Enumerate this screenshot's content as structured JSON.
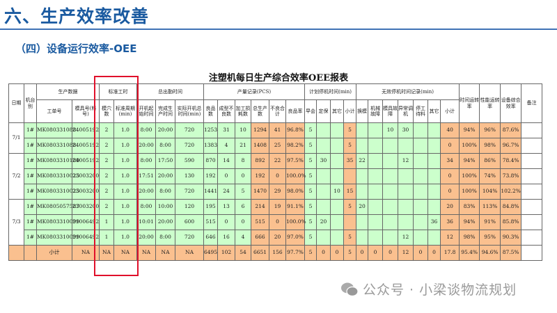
{
  "header": {
    "title": "六、生产效率改善",
    "subtitle": "（四）设备运行效率-OEE"
  },
  "report": {
    "title": "注塑机每日生产综合效率OEE报表",
    "groups": {
      "date": "日期",
      "machine": "机台别",
      "production": "生产数据",
      "std_time": "标准工时",
      "attendance": "总出勤时间",
      "output": "产量记录(PCS)",
      "planned": "计划停机时间(min)",
      "invalid": "无效停机时间记录(min)",
      "time_rate": "时间运转率",
      "perf_rate": "性能运转率",
      "oee": "设备综合效率",
      "remark": "备注"
    },
    "columns": [
      "工单号",
      "模具号(料号)",
      "模穴数",
      "标准周期(min)",
      "开机起始时间",
      "完成生产时间",
      "实际开机总时间(min)",
      "良品数",
      "成型不良数",
      "加工损耗数",
      "总生产数",
      "不良合计",
      "良品率",
      "早会",
      "定保",
      "其它",
      "小计",
      "换模",
      "机械故障",
      "模具故障",
      "异常调机",
      "停工待料",
      "其它",
      "小计"
    ],
    "date_groups": [
      {
        "date": "7/1",
        "rows": [
          [
            "1#",
            "MK080331088",
            "24005192",
            "2",
            "1.0",
            "8:00",
            "20:00",
            "720",
            "1253",
            "31",
            "10",
            "1294",
            "41",
            "96.8%",
            "5",
            "",
            "",
            "5",
            "",
            "",
            "10",
            "30",
            "",
            "",
            "40",
            "94%",
            "96%",
            "87.6%",
            ""
          ],
          [
            "1#",
            "MK080331088",
            "24005192",
            "2",
            "1.0",
            "20:00",
            "8:00",
            "720",
            "1383",
            "4",
            "21",
            "1408",
            "25",
            "98.2%",
            "5",
            "",
            "",
            "5",
            "",
            "",
            "",
            "",
            "",
            "",
            "0",
            "100%",
            "98%",
            "96.7%",
            ""
          ]
        ]
      },
      {
        "date": "7/2",
        "rows": [
          [
            "1#",
            "MK0803310189",
            "24005192",
            "2",
            "1.0",
            "8:00",
            "17:50",
            "590",
            "870",
            "14",
            "8",
            "892",
            "22",
            "97.5%",
            "5",
            "30",
            "",
            "35",
            "22",
            "",
            "",
            "12",
            "",
            "",
            "34",
            "94%",
            "86%",
            "78.4%",
            ""
          ],
          [
            "1#",
            "MK0803310025",
            "23003200",
            "2",
            "1.0",
            "17:51",
            "20:00",
            "130",
            "192",
            "0",
            "0",
            "192",
            "0",
            "100.0%",
            "5",
            "",
            "",
            "",
            "",
            "",
            "",
            "",
            "",
            "",
            "0",
            "100%",
            "74%",
            "73.8%",
            ""
          ],
          [
            "1#",
            "MK0803310025",
            "23003200",
            "2",
            "1.0",
            "20:00",
            "8:00",
            "720",
            "1441",
            "24",
            "5",
            "1470",
            "29",
            "98.0%",
            "5",
            "",
            "10",
            "15",
            "",
            "",
            "",
            "",
            "",
            "",
            "0",
            "100%",
            "104%",
            "102.2%",
            ""
          ]
        ]
      },
      {
        "date": "7/3",
        "rows": [
          [
            "1#",
            "MK0805057587",
            "23003200",
            "2",
            "1.0",
            "8:00",
            "10:00",
            "120",
            "195",
            "13",
            "6",
            "214",
            "19",
            "91.1%",
            "5",
            "",
            "",
            "5",
            "20",
            "",
            "",
            "",
            "",
            "",
            "20",
            "83%",
            "113%",
            "84.8%",
            ""
          ],
          [
            "1#",
            "MK0803310099",
            "21006492",
            "1",
            "1.0",
            "10:01",
            "20:00",
            "600",
            "515",
            "0",
            "0",
            "515",
            "0",
            "100.0%",
            "5",
            "20",
            "",
            "",
            "",
            "",
            "",
            "",
            "",
            "36",
            "36",
            "94%",
            "91%",
            "85.8%",
            ""
          ],
          [
            "1#",
            "MK0803310099",
            "21006492",
            "1",
            "1.0",
            "20:00",
            "8:00",
            "720",
            "646",
            "16",
            "4",
            "666",
            "20",
            "97.0%",
            "5",
            "",
            "",
            "5",
            "",
            "",
            "",
            "12",
            "",
            "",
            "12",
            "98%",
            "95%",
            "90.3%",
            ""
          ]
        ]
      }
    ],
    "subtotal": [
      "",
      "",
      "小计",
      "NA",
      "NA",
      "NA",
      "NA",
      "NA",
      "NA",
      "6495",
      "102",
      "54",
      "6651",
      "156",
      "97.7%",
      "5",
      "0",
      "0",
      "5",
      "0",
      "0",
      "0",
      "12",
      "0",
      "0",
      "17.8",
      "95.4%",
      "94.6%",
      "87.5%",
      ""
    ]
  },
  "watermark": "公众号 · 小梁谈物流规划",
  "colors": {
    "title_blue": "#1a5aa0",
    "green": "#ccffcc",
    "orange": "#fac08f",
    "highlight_box": "#e0102a"
  }
}
